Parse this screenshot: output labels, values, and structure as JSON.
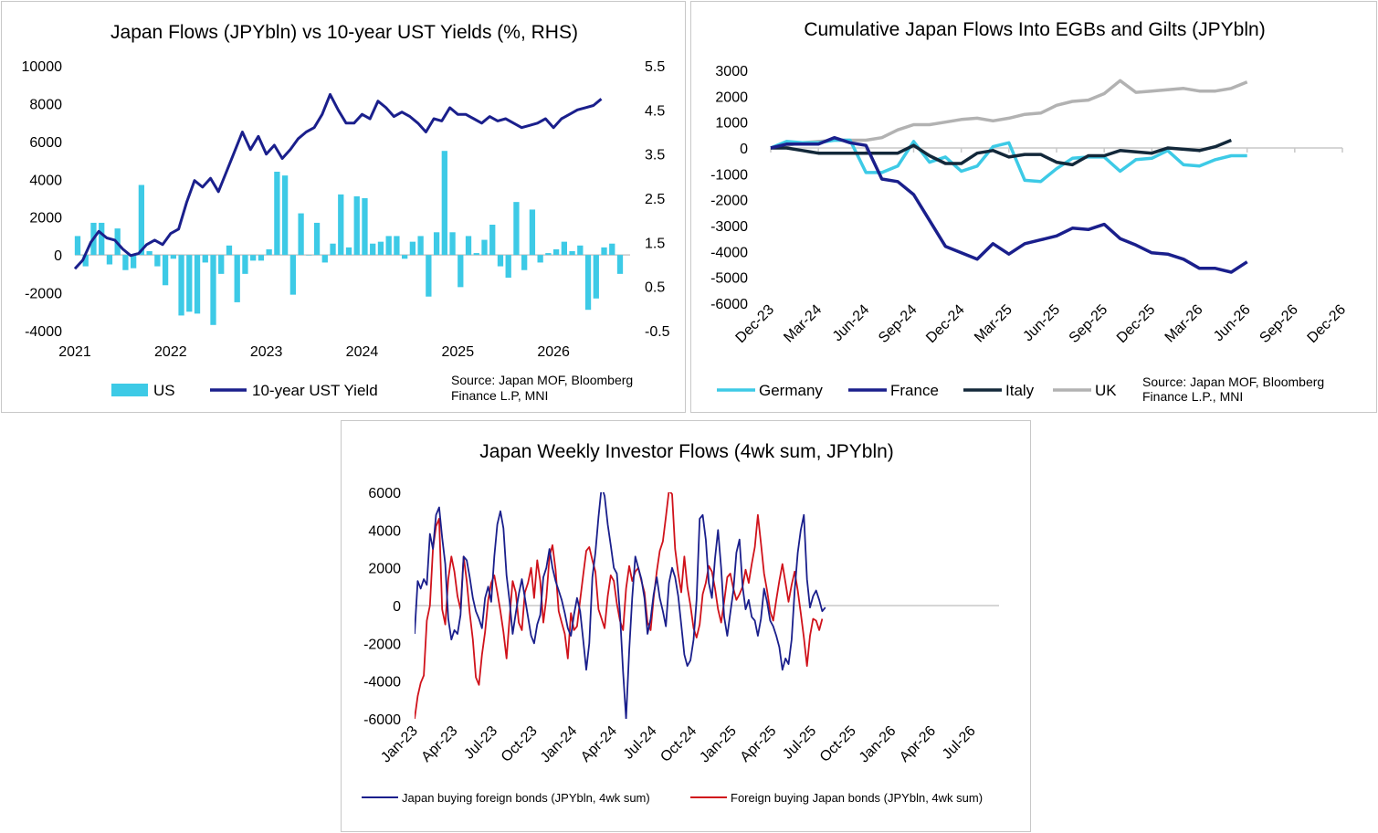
{
  "colors": {
    "us_bar": "#3dcae6",
    "ust_yield": "#1a1f8c",
    "germany": "#3dcae6",
    "france": "#1a1f8c",
    "italy": "#13283a",
    "uk": "#b2b2b2",
    "japan_buying": "#1a1f8c",
    "foreign_buying": "#d0121b",
    "axis": "#c8c8c8"
  },
  "chart_data": [
    {
      "id": "chart1",
      "type": "bar+line",
      "title": "Japan Flows (JPYbln) vs 10-year UST Yields (%, RHS)",
      "x_tick_labels": [
        "2021",
        "2022",
        "2023",
        "2024",
        "2025",
        "2026"
      ],
      "x_range": [
        2021,
        2026.8
      ],
      "y_left": {
        "min": -4000,
        "max": 10000,
        "ticks": [
          "-4000",
          "-2000",
          "0",
          "2000",
          "4000",
          "6000",
          "8000",
          "10000"
        ]
      },
      "y_right": {
        "min": -0.5,
        "max": 5.5,
        "ticks": [
          "-0.5",
          "0.5",
          "1.5",
          "2.5",
          "3.5",
          "4.5",
          "5.5"
        ]
      },
      "series": [
        {
          "name": "US",
          "kind": "bar",
          "axis": "left",
          "x_start": 2021.0,
          "x_step": 0.08333,
          "values": [
            1000,
            -600,
            1700,
            1700,
            -500,
            1400,
            -800,
            -700,
            3700,
            200,
            -600,
            -1600,
            -200,
            -3200,
            -3000,
            -3100,
            -400,
            -3700,
            -1000,
            500,
            -2500,
            -1000,
            -300,
            -300,
            300,
            4400,
            4200,
            -2100,
            2200,
            0,
            1700,
            -400,
            600,
            3200,
            400,
            3100,
            3000,
            600,
            700,
            1000,
            1000,
            -200,
            700,
            1000,
            -2200,
            1200,
            5500,
            1200,
            -1700,
            1000,
            100,
            800,
            1600,
            -600,
            -1200,
            2800,
            -800,
            2400,
            -400,
            100,
            300,
            700,
            200,
            500,
            -2900,
            -2300,
            400,
            600,
            -1000
          ]
        },
        {
          "name": "10-year UST Yield",
          "kind": "line",
          "axis": "right",
          "x_start": 2021.0,
          "x_step": 0.08333,
          "values": [
            0.9,
            1.1,
            1.5,
            1.75,
            1.6,
            1.55,
            1.35,
            1.2,
            1.25,
            1.45,
            1.55,
            1.45,
            1.7,
            1.8,
            2.4,
            2.9,
            2.75,
            2.95,
            2.65,
            3.1,
            3.55,
            4.0,
            3.6,
            3.9,
            3.5,
            3.7,
            3.4,
            3.6,
            3.85,
            4.0,
            4.1,
            4.4,
            4.85,
            4.5,
            4.2,
            4.2,
            4.4,
            4.3,
            4.7,
            4.55,
            4.35,
            4.45,
            4.35,
            4.2,
            4.0,
            4.3,
            4.25,
            4.55,
            4.4,
            4.4,
            4.3,
            4.2,
            4.35,
            4.25,
            4.3,
            4.2,
            4.1,
            4.15,
            4.2,
            4.3,
            4.1,
            4.3,
            4.4,
            4.5,
            4.55,
            4.6,
            4.75
          ]
        }
      ],
      "legend": [
        "US",
        "10-year UST Yield"
      ],
      "source": [
        "Source: Japan MOF, Bloomberg",
        "Finance L.P, MNI"
      ]
    },
    {
      "id": "chart2",
      "type": "line",
      "title": "Cumulative Japan Flows Into EGBs and Gilts (JPYbln)",
      "x_tick_labels": [
        "Dec-23",
        "Mar-24",
        "Jun-24",
        "Sep-24",
        "Dec-24",
        "Mar-25",
        "Jun-25",
        "Sep-25",
        "Dec-25",
        "Mar-26",
        "Jun-26",
        "Sep-26",
        "Dec-26"
      ],
      "x_range_months": [
        0,
        36
      ],
      "y": {
        "min": -6000,
        "max": 3000,
        "ticks": [
          "3000",
          "2000",
          "1000",
          "0",
          "-1000",
          "-2000",
          "-3000",
          "-4000",
          "-5000",
          "-6000"
        ]
      },
      "series": [
        {
          "name": "Germany",
          "x_step_months": 1,
          "values": [
            0,
            250,
            200,
            200,
            300,
            300,
            -950,
            -950,
            -700,
            250,
            -550,
            -350,
            -900,
            -700,
            50,
            200,
            -1250,
            -1300,
            -800,
            -400,
            -350,
            -350,
            -900,
            -450,
            -400,
            -100,
            -650,
            -700,
            -450,
            -300,
            -300
          ]
        },
        {
          "name": "France",
          "x_step_months": 1,
          "values": [
            0,
            150,
            150,
            150,
            400,
            200,
            100,
            -1200,
            -1300,
            -1800,
            -2800,
            -3800,
            -4050,
            -4300,
            -3700,
            -4100,
            -3700,
            -3550,
            -3400,
            -3100,
            -3150,
            -2950,
            -3500,
            -3750,
            -4050,
            -4100,
            -4300,
            -4650,
            -4650,
            -4800,
            -4400
          ]
        },
        {
          "name": "Italy",
          "x_step_months": 1,
          "values": [
            0,
            0,
            -100,
            -200,
            -200,
            -200,
            -200,
            -200,
            -200,
            100,
            -300,
            -600,
            -600,
            -200,
            -100,
            -350,
            -250,
            -250,
            -550,
            -650,
            -300,
            -300,
            -100,
            -150,
            -200,
            0,
            -50,
            -100,
            50,
            300
          ]
        },
        {
          "name": "UK",
          "x_step_months": 1,
          "values": [
            0,
            100,
            200,
            250,
            300,
            300,
            300,
            400,
            700,
            900,
            900,
            1000,
            1100,
            1150,
            1050,
            1150,
            1300,
            1350,
            1650,
            1800,
            1850,
            2100,
            2600,
            2150,
            2200,
            2250,
            2300,
            2200,
            2200,
            2300,
            2550
          ]
        }
      ],
      "legend": [
        "Germany",
        "France",
        "Italy",
        "UK"
      ],
      "source": [
        "Source: Japan MOF, Bloomberg",
        "Finance L.P., MNI"
      ]
    },
    {
      "id": "chart3",
      "type": "line",
      "title": "Japan Weekly Investor Flows (4wk sum, JPYbln)",
      "x_tick_labels": [
        "Jan-23",
        "Apr-23",
        "Jul-23",
        "Oct-23",
        "Jan-24",
        "Apr-24",
        "Jul-24",
        "Oct-24",
        "Jan-25",
        "Apr-25",
        "Jul-25",
        "Oct-25",
        "Jan-26",
        "Apr-26",
        "Jul-26"
      ],
      "x_range_months": [
        0,
        44
      ],
      "y": {
        "min": -6000,
        "max": 6000,
        "ticks": [
          "6000",
          "4000",
          "2000",
          "0",
          "-2000",
          "-4000",
          "-6000"
        ]
      },
      "series": [
        {
          "name": "Japan buying foreign bonds (JPYbln, 4wk sum)",
          "x_step_weeks": 1,
          "values": [
            -1500,
            1300,
            900,
            1400,
            1100,
            3800,
            3000,
            4800,
            5200,
            3600,
            2200,
            -700,
            -1800,
            -1300,
            -1500,
            -500,
            2600,
            2400,
            1500,
            400,
            -300,
            -700,
            -1200,
            400,
            1000,
            200,
            2600,
            4300,
            5000,
            4100,
            1600,
            200,
            -1500,
            -400,
            600,
            1400,
            400,
            -600,
            -1600,
            -2000,
            -1000,
            -500,
            1500,
            2000,
            3000,
            2000,
            1300,
            800,
            300,
            -400,
            -1200,
            -1600,
            -500,
            400,
            -300,
            -1800,
            -3400,
            -2000,
            1500,
            2800,
            4700,
            6300,
            5800,
            4300,
            3200,
            2000,
            1700,
            -400,
            -3500,
            -6000,
            -2400,
            400,
            2600,
            2000,
            1400,
            400,
            -1500,
            -700,
            600,
            1500,
            400,
            -300,
            -1100,
            1200,
            2000,
            1500,
            500,
            -1000,
            -2600,
            -3200,
            -2900,
            -1800,
            300,
            4600,
            4800,
            3500,
            1200,
            400,
            2500,
            4000,
            2000,
            -600,
            -1600,
            -400,
            800,
            2800,
            3500,
            1000,
            -200,
            300,
            -600,
            -800,
            -1600,
            -700,
            900,
            200,
            -800,
            -1100,
            -1600,
            -2200,
            -3400,
            -2800,
            -3100,
            -1800,
            800,
            2800,
            4000,
            4800,
            1400,
            -100,
            500,
            800,
            300,
            -300,
            -100
          ]
        },
        {
          "name": "Foreign buying Japan bonds (JPYbln, 4wk sum)",
          "x_step_weeks": 1,
          "values": [
            -6000,
            -4800,
            -4100,
            -3700,
            -800,
            0,
            3000,
            4200,
            4600,
            -200,
            -1000,
            1400,
            2600,
            1800,
            500,
            -200,
            2600,
            1300,
            -400,
            -1800,
            -3800,
            -4200,
            -2600,
            -1400,
            300,
            1200,
            1600,
            700,
            -300,
            -1400,
            -2800,
            -600,
            1300,
            700,
            -900,
            -1300,
            700,
            1200,
            2000,
            400,
            2400,
            1300,
            -900,
            400,
            2600,
            3200,
            1900,
            -300,
            -900,
            -1500,
            -2800,
            -400,
            -1300,
            -1100,
            300,
            1600,
            2900,
            3100,
            2400,
            1800,
            -200,
            -700,
            -1200,
            500,
            1600,
            1300,
            100,
            -800,
            -1300,
            900,
            2100,
            1300,
            1800,
            2000,
            1300,
            700,
            -900,
            -1300,
            400,
            1800,
            2900,
            3400,
            4700,
            6100,
            5900,
            3000,
            1700,
            700,
            2600,
            1000,
            0,
            -1200,
            -1700,
            -1000,
            600,
            1200,
            2100,
            1800,
            900,
            -200,
            -900,
            200,
            1500,
            1700,
            900,
            300,
            600,
            1000,
            1900,
            1200,
            2200,
            3100,
            4800,
            3300,
            1700,
            800,
            -300,
            -800,
            300,
            1300,
            2200,
            1200,
            200,
            1100,
            1800,
            800,
            -400,
            -1700,
            -3200,
            -1600,
            -700,
            -800,
            -1300,
            -700
          ]
        }
      ],
      "legend": [
        "Japan buying foreign bonds (JPYbln, 4wk sum)",
        "Foreign buying Japan bonds (JPYbln, 4wk sum)"
      ]
    }
  ]
}
